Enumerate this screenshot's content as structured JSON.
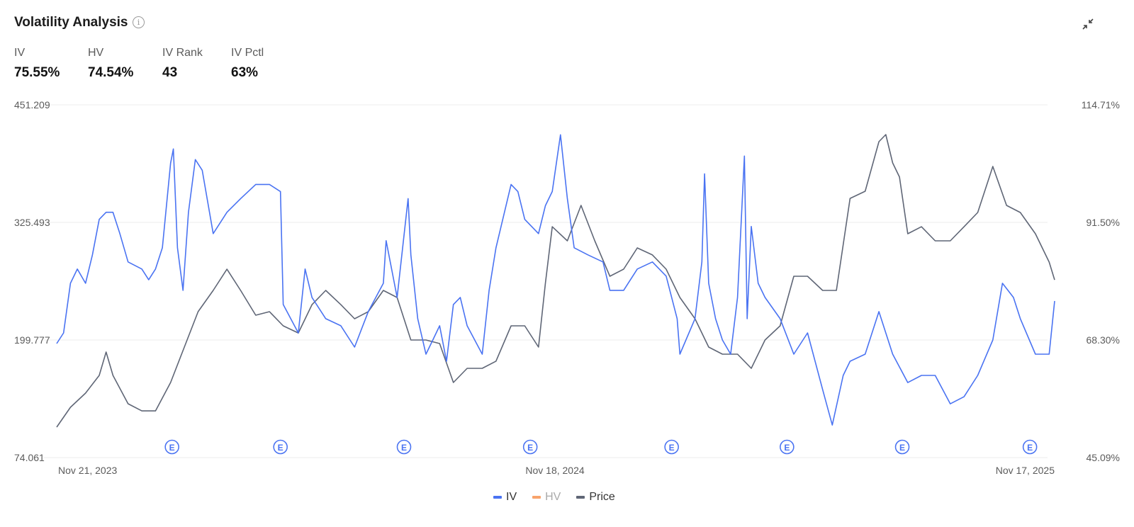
{
  "header": {
    "title": "Volatility Analysis",
    "info_icon": "info-icon",
    "expand_icon": "collapse-arrows-icon"
  },
  "stats": [
    {
      "label": "IV",
      "value": "75.55%"
    },
    {
      "label": "HV",
      "value": "74.54%"
    },
    {
      "label": "IV Rank",
      "value": "43"
    },
    {
      "label": "IV Pctl",
      "value": "63%"
    }
  ],
  "colors": {
    "iv": "#4a73f2",
    "hv": "#f8a36b",
    "price": "#5f6676",
    "grid": "#eeeeee"
  },
  "chart_data": {
    "type": "line",
    "x_unit": "days since Nov 21, 2023",
    "x_range": [
      0,
      727
    ],
    "x_tick_labels": [
      "Nov 21, 2023",
      "Nov 18, 2024",
      "Nov 17, 2025"
    ],
    "x_tick_days": [
      0,
      363,
      727
    ],
    "left_axis": {
      "ticks": [
        "451.209",
        "325.493",
        "199.777",
        "74.061"
      ],
      "range": [
        74.061,
        451.209
      ]
    },
    "right_axis": {
      "ticks": [
        "114.71%",
        "91.50%",
        "68.30%",
        "45.09%"
      ],
      "range": [
        45.09,
        114.71
      ]
    },
    "legend": [
      {
        "name": "IV",
        "active": true
      },
      {
        "name": "HV",
        "active": false
      },
      {
        "name": "Price",
        "active": true
      }
    ],
    "legend_position": "bottom-center",
    "earnings_marker_label": "E",
    "earnings_days": [
      84,
      163,
      253,
      345,
      448,
      532,
      616,
      709
    ],
    "series": [
      {
        "name": "Price",
        "axis": "left",
        "points": [
          [
            0,
            106.6
          ],
          [
            10,
            127.8
          ],
          [
            21,
            143.0
          ],
          [
            31,
            161.9
          ],
          [
            36,
            186.9
          ],
          [
            41,
            161.9
          ],
          [
            52,
            131.6
          ],
          [
            62,
            124.0
          ],
          [
            72,
            124.0
          ],
          [
            83,
            154.3
          ],
          [
            93,
            192.2
          ],
          [
            103,
            230.1
          ],
          [
            114,
            252.8
          ],
          [
            124,
            275.5
          ],
          [
            134,
            252.8
          ],
          [
            145,
            226.3
          ],
          [
            155,
            230.1
          ],
          [
            165,
            214.9
          ],
          [
            176,
            207.3
          ],
          [
            186,
            237.6
          ],
          [
            196,
            252.8
          ],
          [
            207,
            237.6
          ],
          [
            217,
            222.5
          ],
          [
            227,
            230.1
          ],
          [
            238,
            252.8
          ],
          [
            248,
            245.2
          ],
          [
            258,
            199.8
          ],
          [
            269,
            199.8
          ],
          [
            279,
            196.0
          ],
          [
            289,
            154.3
          ],
          [
            299,
            169.5
          ],
          [
            310,
            169.5
          ],
          [
            320,
            177.1
          ],
          [
            331,
            214.9
          ],
          [
            341,
            214.9
          ],
          [
            351,
            192.2
          ],
          [
            356,
            260.4
          ],
          [
            361,
            320.9
          ],
          [
            372,
            305.8
          ],
          [
            382,
            343.7
          ],
          [
            392,
            305.8
          ],
          [
            403,
            267.9
          ],
          [
            413,
            275.5
          ],
          [
            423,
            298.2
          ],
          [
            434,
            290.7
          ],
          [
            444,
            275.5
          ],
          [
            454,
            245.2
          ],
          [
            465,
            222.5
          ],
          [
            475,
            192.2
          ],
          [
            485,
            184.6
          ],
          [
            496,
            184.6
          ],
          [
            506,
            169.5
          ],
          [
            516,
            199.8
          ],
          [
            527,
            214.9
          ],
          [
            537,
            267.9
          ],
          [
            547,
            267.9
          ],
          [
            558,
            252.8
          ],
          [
            568,
            252.8
          ],
          [
            578,
            351.2
          ],
          [
            589,
            358.8
          ],
          [
            599,
            411.8
          ],
          [
            604,
            419.4
          ],
          [
            609,
            389.1
          ],
          [
            614,
            374.0
          ],
          [
            620,
            313.4
          ],
          [
            630,
            320.9
          ],
          [
            640,
            305.8
          ],
          [
            651,
            305.8
          ],
          [
            661,
            320.9
          ],
          [
            671,
            336.1
          ],
          [
            682,
            385.3
          ],
          [
            692,
            343.7
          ],
          [
            702,
            336.1
          ],
          [
            713,
            313.4
          ],
          [
            723,
            283.1
          ],
          [
            727,
            264.1
          ]
        ]
      },
      {
        "name": "IV",
        "axis": "right",
        "points": [
          [
            0,
            67.6
          ],
          [
            5,
            69.7
          ],
          [
            10,
            79.5
          ],
          [
            15,
            82.3
          ],
          [
            21,
            79.5
          ],
          [
            26,
            85.1
          ],
          [
            31,
            92.1
          ],
          [
            36,
            93.5
          ],
          [
            41,
            93.5
          ],
          [
            46,
            89.3
          ],
          [
            52,
            83.7
          ],
          [
            62,
            82.3
          ],
          [
            67,
            80.2
          ],
          [
            72,
            82.3
          ],
          [
            77,
            86.5
          ],
          [
            83,
            103.2
          ],
          [
            85,
            106.0
          ],
          [
            88,
            86.5
          ],
          [
            92,
            78.1
          ],
          [
            96,
            93.5
          ],
          [
            101,
            103.9
          ],
          [
            106,
            101.8
          ],
          [
            114,
            89.3
          ],
          [
            124,
            93.5
          ],
          [
            134,
            96.2
          ],
          [
            145,
            99.0
          ],
          [
            155,
            99.0
          ],
          [
            163,
            97.6
          ],
          [
            165,
            75.3
          ],
          [
            176,
            69.7
          ],
          [
            181,
            82.3
          ],
          [
            186,
            76.7
          ],
          [
            196,
            72.5
          ],
          [
            207,
            71.1
          ],
          [
            217,
            66.9
          ],
          [
            227,
            73.9
          ],
          [
            238,
            79.5
          ],
          [
            240,
            87.9
          ],
          [
            248,
            76.7
          ],
          [
            256,
            96.2
          ],
          [
            258,
            85.1
          ],
          [
            263,
            72.5
          ],
          [
            269,
            65.5
          ],
          [
            274,
            68.3
          ],
          [
            279,
            71.1
          ],
          [
            284,
            64.1
          ],
          [
            289,
            75.3
          ],
          [
            294,
            76.7
          ],
          [
            299,
            71.1
          ],
          [
            310,
            65.5
          ],
          [
            315,
            78.1
          ],
          [
            320,
            86.5
          ],
          [
            331,
            99.0
          ],
          [
            336,
            97.6
          ],
          [
            341,
            92.1
          ],
          [
            351,
            89.3
          ],
          [
            356,
            94.8
          ],
          [
            361,
            97.6
          ],
          [
            367,
            108.8
          ],
          [
            372,
            96.2
          ],
          [
            377,
            86.5
          ],
          [
            387,
            85.1
          ],
          [
            398,
            83.7
          ],
          [
            403,
            78.1
          ],
          [
            413,
            78.1
          ],
          [
            423,
            82.3
          ],
          [
            434,
            83.7
          ],
          [
            444,
            80.9
          ],
          [
            452,
            72.5
          ],
          [
            454,
            65.5
          ],
          [
            465,
            72.5
          ],
          [
            470,
            83.7
          ],
          [
            472,
            101.1
          ],
          [
            475,
            79.5
          ],
          [
            480,
            72.5
          ],
          [
            485,
            68.3
          ],
          [
            491,
            65.5
          ],
          [
            496,
            76.7
          ],
          [
            501,
            104.6
          ],
          [
            503,
            72.5
          ],
          [
            506,
            90.7
          ],
          [
            511,
            79.5
          ],
          [
            516,
            76.7
          ],
          [
            527,
            72.5
          ],
          [
            537,
            65.5
          ],
          [
            547,
            69.7
          ],
          [
            558,
            58.5
          ],
          [
            565,
            51.5
          ],
          [
            573,
            61.3
          ],
          [
            578,
            64.1
          ],
          [
            589,
            65.5
          ],
          [
            599,
            73.9
          ],
          [
            604,
            69.7
          ],
          [
            609,
            65.5
          ],
          [
            620,
            59.9
          ],
          [
            630,
            61.3
          ],
          [
            640,
            61.3
          ],
          [
            651,
            55.7
          ],
          [
            661,
            57.1
          ],
          [
            671,
            61.3
          ],
          [
            682,
            68.3
          ],
          [
            689,
            79.5
          ],
          [
            697,
            76.7
          ],
          [
            702,
            72.5
          ],
          [
            713,
            65.5
          ],
          [
            723,
            65.5
          ],
          [
            727,
            76.0
          ]
        ]
      }
    ]
  }
}
